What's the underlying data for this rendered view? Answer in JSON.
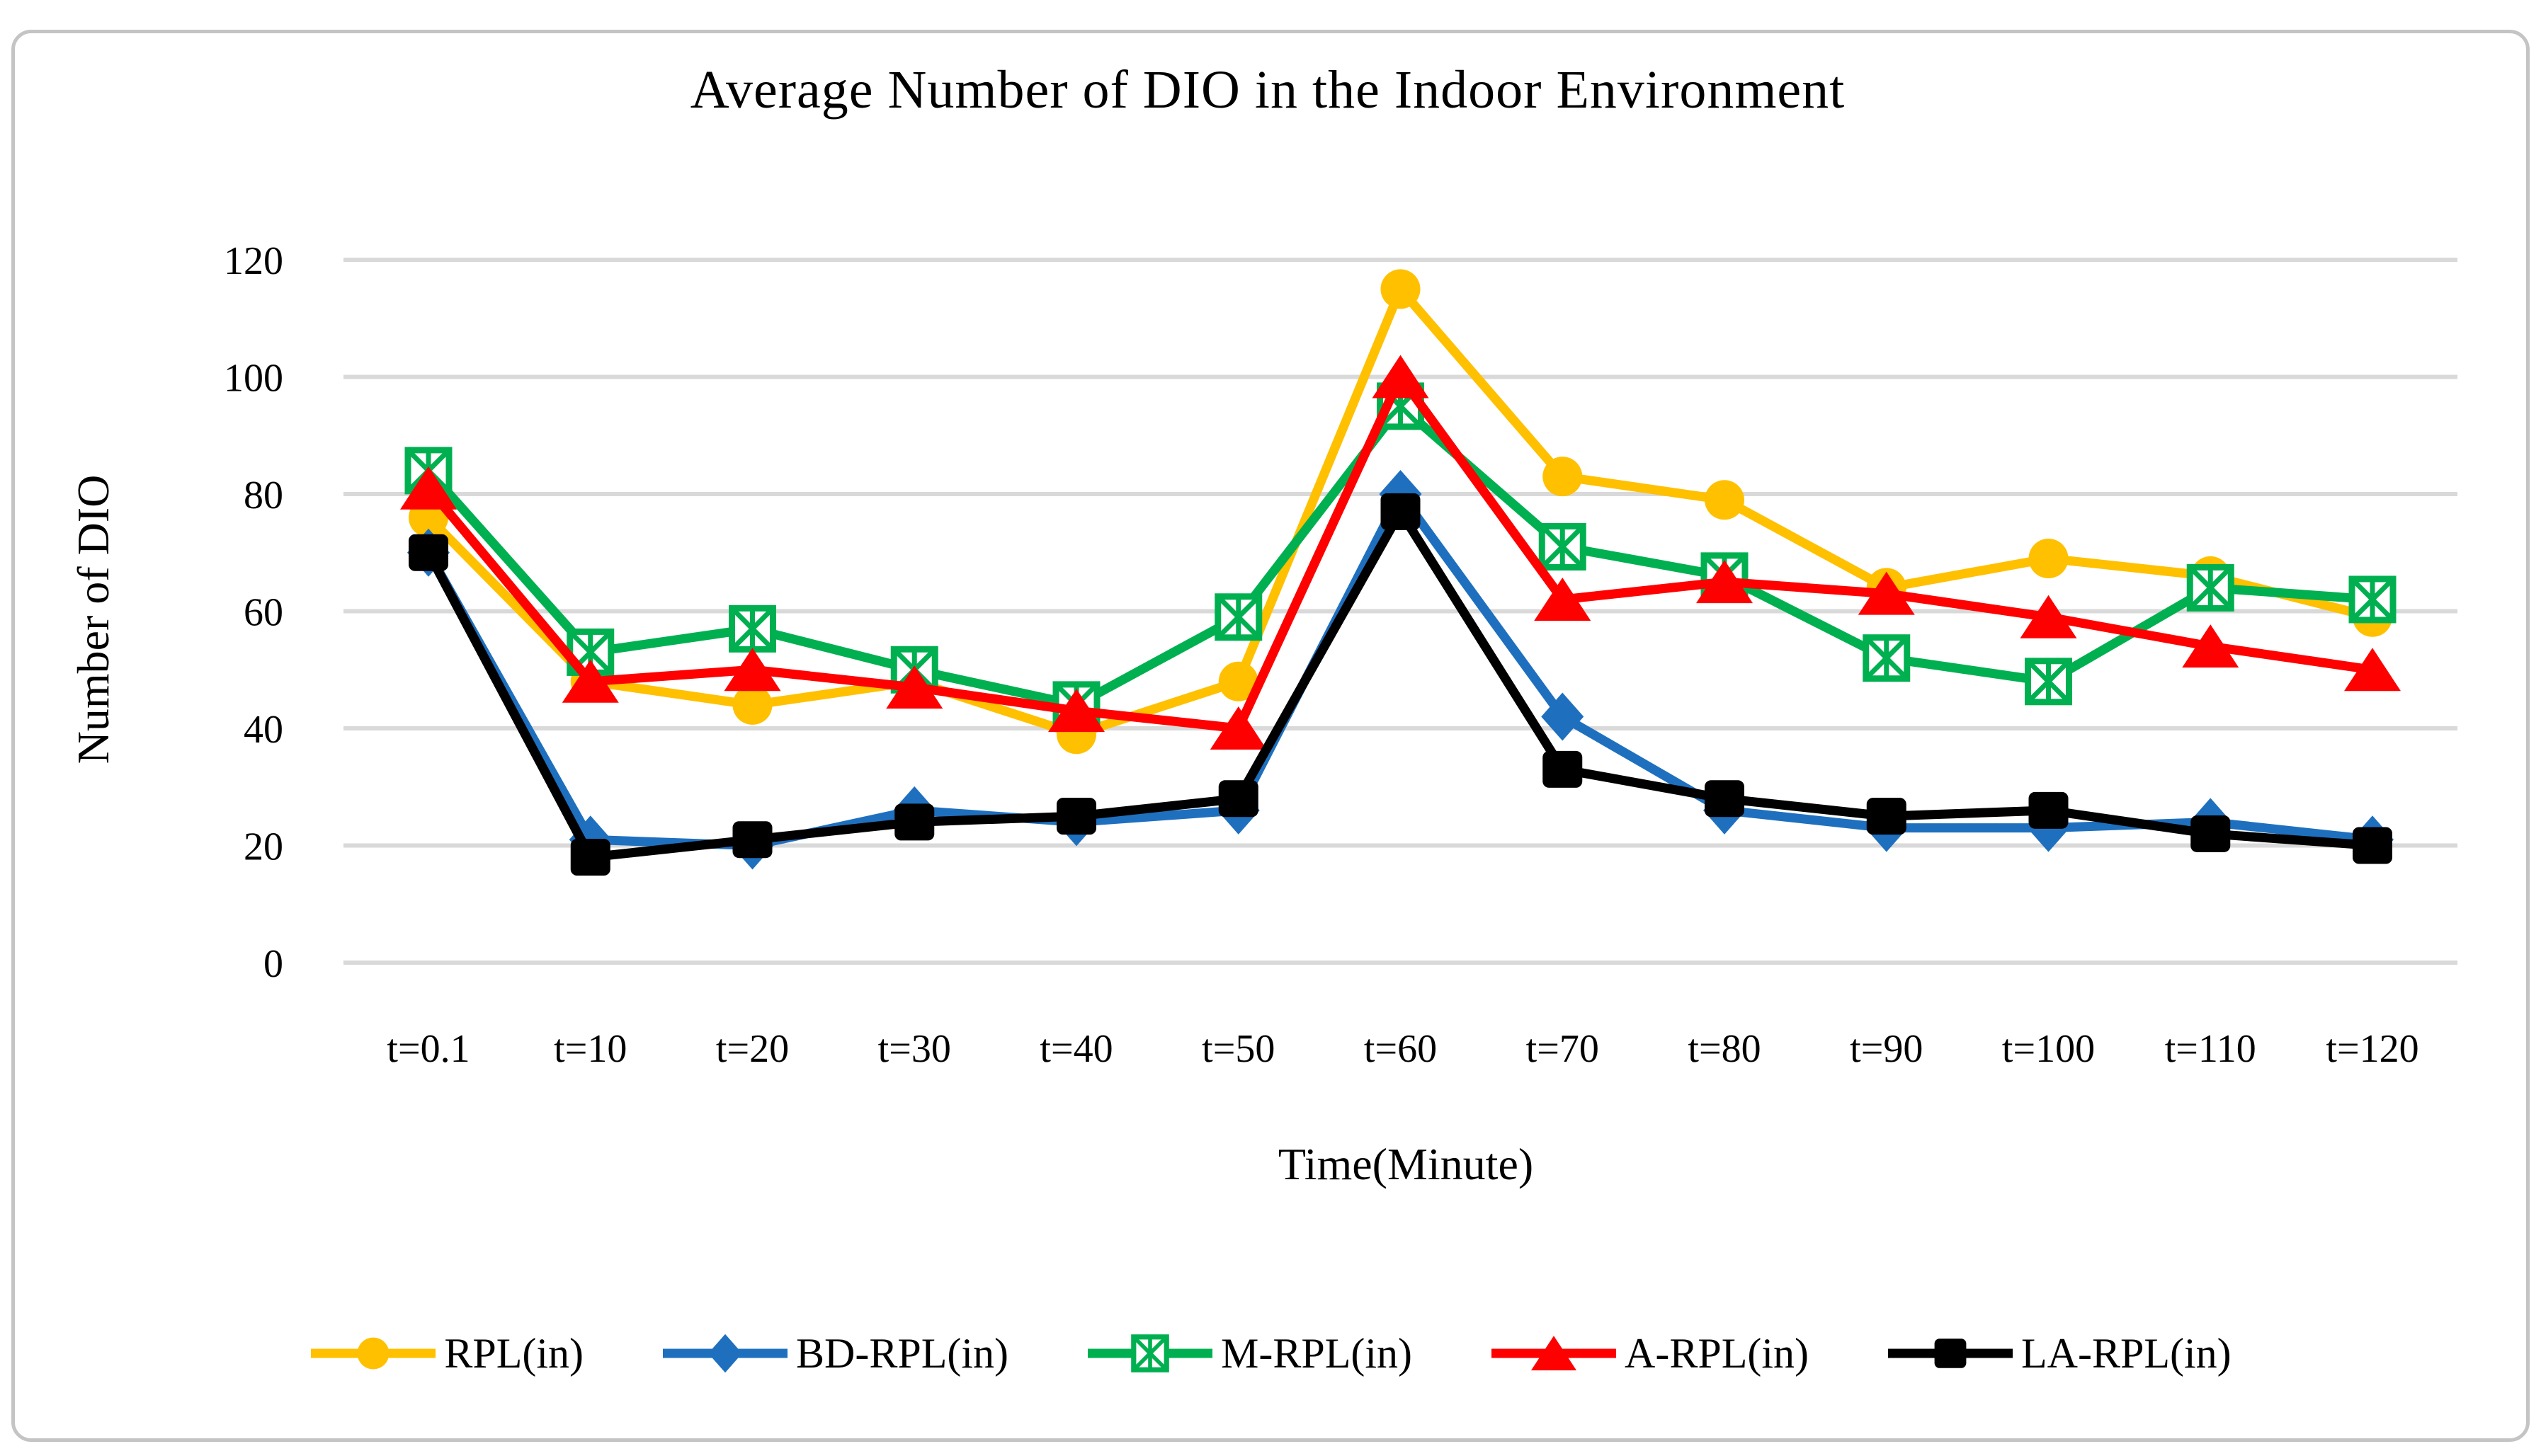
{
  "chart_data": {
    "type": "line",
    "title": "Average Number of DIO in the Indoor Environment",
    "xlabel": "Time(Minute)",
    "ylabel": "Number of DIO",
    "categories": [
      "t=0.1",
      "t=10",
      "t=20",
      "t=30",
      "t=40",
      "t=50",
      "t=60",
      "t=70",
      "t=80",
      "t=90",
      "t=100",
      "t=110",
      "t=120"
    ],
    "ylim": [
      0,
      120
    ],
    "ytick_interval": 20,
    "y_ticks": [
      0,
      20,
      40,
      60,
      80,
      100,
      120
    ],
    "grid": "horizontal",
    "legend_position": "bottom",
    "series": [
      {
        "name": "RPL(in)",
        "color": "#FFC000",
        "marker": "circle",
        "values": [
          76,
          48,
          44,
          48,
          39,
          48,
          115,
          83,
          79,
          64,
          69,
          66,
          59
        ]
      },
      {
        "name": "BD-RPL(in)",
        "color": "#1E70BF",
        "marker": "diamond",
        "values": [
          70,
          21,
          20,
          26,
          24,
          26,
          80,
          42,
          26,
          23,
          23,
          24,
          21
        ]
      },
      {
        "name": "M-RPL(in)",
        "color": "#00B050",
        "marker": "x-square",
        "values": [
          84,
          53,
          57,
          50,
          44,
          59,
          95,
          71,
          66,
          52,
          48,
          64,
          62
        ]
      },
      {
        "name": "A-RPL(in)",
        "color": "#FF0000",
        "marker": "triangle",
        "values": [
          81,
          48,
          50,
          47,
          43,
          40,
          100,
          62,
          65,
          63,
          59,
          54,
          50
        ]
      },
      {
        "name": "LA-RPL(in)",
        "color": "#000000",
        "marker": "square",
        "values": [
          70,
          18,
          21,
          24,
          25,
          28,
          77,
          33,
          28,
          25,
          26,
          22,
          20
        ]
      }
    ]
  },
  "colors": {
    "gridline": "#D9D9D9",
    "frame_border": "#C4C4C4",
    "text": "#000000",
    "background": "#FFFFFF"
  }
}
